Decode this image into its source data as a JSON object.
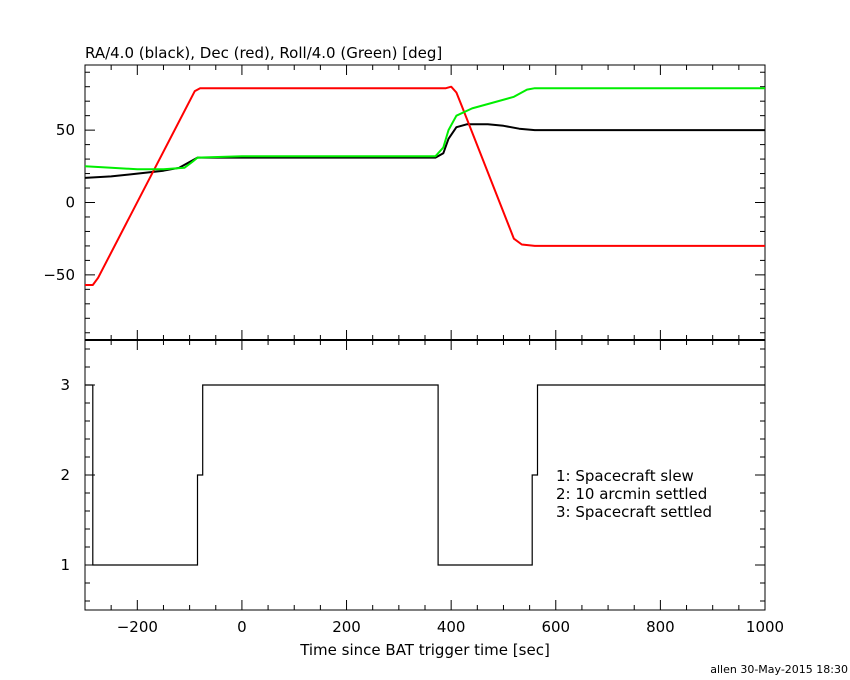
{
  "chart_data": [
    {
      "type": "line",
      "title": "RA/4.0 (black), Dec (red), Roll/4.0 (Green) [deg]",
      "xlim": [
        -300,
        1000
      ],
      "ylim": [
        -95,
        95
      ],
      "yticks": [
        -50,
        0,
        50
      ],
      "series": [
        {
          "color": "#000000",
          "points": [
            [
              -300,
              17
            ],
            [
              -250,
              18
            ],
            [
              -200,
              20
            ],
            [
              -150,
              22
            ],
            [
              -120,
              24
            ],
            [
              -100,
              28
            ],
            [
              -85,
              31
            ],
            [
              -50,
              31
            ],
            [
              0,
              31
            ],
            [
              100,
              31
            ],
            [
              200,
              31
            ],
            [
              300,
              31
            ],
            [
              370,
              31
            ],
            [
              385,
              34
            ],
            [
              395,
              44
            ],
            [
              410,
              52
            ],
            [
              430,
              54
            ],
            [
              470,
              54
            ],
            [
              500,
              53
            ],
            [
              530,
              51
            ],
            [
              560,
              50
            ],
            [
              700,
              50
            ],
            [
              850,
              50
            ],
            [
              1000,
              50
            ]
          ]
        },
        {
          "color": "#ff0000",
          "points": [
            [
              -300,
              -57
            ],
            [
              -285,
              -57
            ],
            [
              -275,
              -52
            ],
            [
              -90,
              77
            ],
            [
              -80,
              79
            ],
            [
              0,
              79
            ],
            [
              200,
              79
            ],
            [
              370,
              79
            ],
            [
              390,
              79
            ],
            [
              400,
              80
            ],
            [
              410,
              76
            ],
            [
              420,
              67
            ],
            [
              520,
              -25
            ],
            [
              535,
              -29
            ],
            [
              560,
              -30
            ],
            [
              700,
              -30
            ],
            [
              850,
              -30
            ],
            [
              1000,
              -30
            ]
          ]
        },
        {
          "color": "#00ee00",
          "points": [
            [
              -300,
              25
            ],
            [
              -250,
              24
            ],
            [
              -200,
              23
            ],
            [
              -150,
              23
            ],
            [
              -110,
              24
            ],
            [
              -95,
              28
            ],
            [
              -85,
              31
            ],
            [
              0,
              32
            ],
            [
              100,
              32
            ],
            [
              200,
              32
            ],
            [
              300,
              32
            ],
            [
              370,
              32
            ],
            [
              385,
              38
            ],
            [
              395,
              50
            ],
            [
              410,
              60
            ],
            [
              440,
              65
            ],
            [
              480,
              69
            ],
            [
              520,
              73
            ],
            [
              545,
              78
            ],
            [
              560,
              79
            ],
            [
              700,
              79
            ],
            [
              850,
              79
            ],
            [
              1000,
              79
            ]
          ]
        }
      ]
    },
    {
      "type": "line",
      "xlabel": "Time since BAT trigger time [sec]",
      "xlim": [
        -300,
        1000
      ],
      "ylim": [
        0.5,
        3.5
      ],
      "xticks": [
        -200,
        0,
        200,
        400,
        600,
        800,
        1000
      ],
      "yticks": [
        1,
        2,
        3
      ],
      "annotations": [
        "1: Spacecraft slew",
        "2: 10 arcmin settled",
        "3: Spacecraft settled"
      ],
      "series": [
        {
          "color": "#000000",
          "steps": [
            [
              -300,
              3
            ],
            [
              -285,
              1
            ],
            [
              -85,
              2
            ],
            [
              -75,
              3
            ],
            [
              375,
              1
            ],
            [
              555,
              2
            ],
            [
              565,
              3
            ],
            [
              1000,
              3
            ]
          ]
        }
      ]
    }
  ],
  "footer": "allen 30-May-2015 18:30"
}
